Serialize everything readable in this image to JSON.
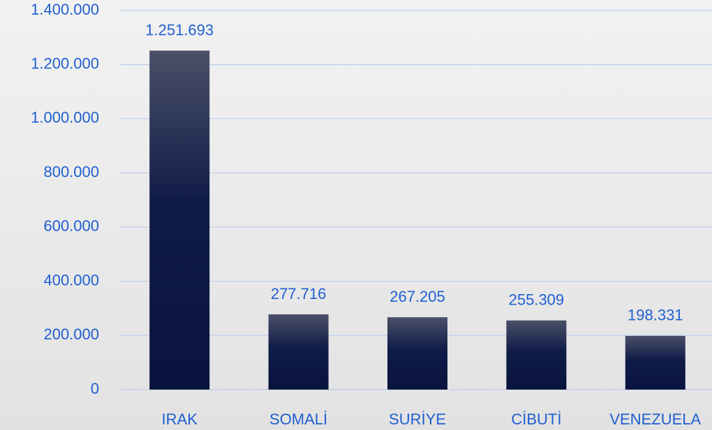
{
  "chart_data": {
    "type": "bar",
    "categories": [
      "IRAK",
      "SOMALİ",
      "SURİYE",
      "CİBUTİ",
      "VENEZUELA"
    ],
    "values": [
      1251693,
      277716,
      267205,
      255309,
      198331
    ],
    "value_labels": [
      "1.251.693",
      "277.716",
      "267.205",
      "255.309",
      "198.331"
    ],
    "color": "#0a1742",
    "ylim": [
      0,
      1400000
    ],
    "yticks": [
      0,
      {
        "value": 200000,
        "label": "200.000"
      },
      {
        "value": 400000,
        "label": "400.000"
      },
      {
        "value": 600000,
        "label": "600.000"
      },
      {
        "value": 800000,
        "label": "800.000"
      },
      {
        "value": 1000000,
        "label": "1.000.000"
      },
      {
        "value": 1200000,
        "label": "1.200.000"
      },
      {
        "value": 1400000,
        "label": "1.400.000"
      }
    ],
    "grid": true
  }
}
